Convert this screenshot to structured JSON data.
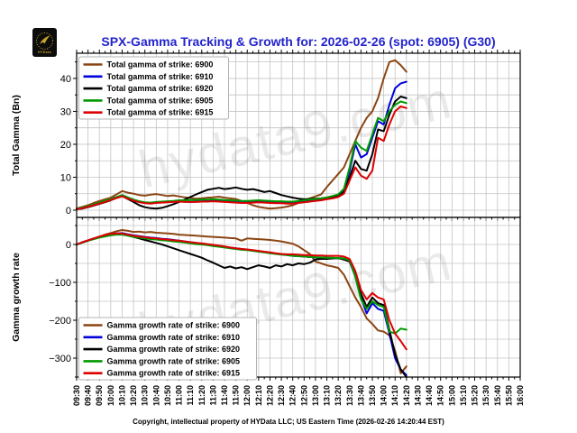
{
  "header": {
    "title": "SPX-Gamma Tracking & Growth for: 2026-02-26 (spot: 6905) (G30)",
    "logo_text": "HYData"
  },
  "footer": {
    "copyright": "Copyright, intellectual property of HYData LLC; US Eastern Time (2026-02-26 14:20:44 EST)"
  },
  "watermark": {
    "text": "hydata9.com"
  },
  "chart_data": {
    "type": "line",
    "x_start": "09:30",
    "x_end": "16:00",
    "x_tick_interval_min": 10,
    "sample_step_min": 5,
    "data_end": "14:20",
    "x_labels": [
      "09:30",
      "09:40",
      "09:50",
      "10:00",
      "10:10",
      "10:20",
      "10:30",
      "10:40",
      "10:50",
      "11:00",
      "11:10",
      "11:20",
      "11:30",
      "11:40",
      "11:50",
      "12:00",
      "12:10",
      "12:20",
      "12:30",
      "12:40",
      "12:50",
      "13:00",
      "13:10",
      "13:20",
      "13:30",
      "13:40",
      "13:50",
      "14:00",
      "14:10",
      "14:20",
      "14:30",
      "14:40",
      "14:50",
      "15:00",
      "15:10",
      "15:20",
      "15:30",
      "15:40",
      "15:50",
      "16:00"
    ],
    "grid": true,
    "legend_position": "upper-left",
    "top": {
      "ylabel": "Total Gamma (Bn)",
      "ylim": [
        -2.2,
        47.6
      ],
      "yticks": [
        0,
        10,
        20,
        30,
        40
      ],
      "grid_step": 5,
      "series": [
        {
          "label": "Total gamma of strike: 6900",
          "color": "#8B4513",
          "values": [
            0.5,
            1.0,
            1.5,
            2.2,
            2.8,
            3.3,
            3.8,
            4.8,
            5.8,
            5.3,
            5.0,
            4.6,
            4.4,
            4.7,
            4.9,
            4.6,
            4.3,
            4.5,
            4.2,
            3.9,
            3.7,
            3.5,
            3.6,
            3.8,
            3.9,
            4.1,
            3.8,
            3.6,
            3.4,
            2.8,
            2.2,
            1.5,
            1.0,
            0.7,
            0.5,
            0.6,
            0.8,
            1.1,
            1.5,
            2.2,
            3.0,
            3.6,
            4.2,
            4.8,
            7.0,
            9.0,
            11.0,
            13.0,
            17.0,
            21.0,
            25.0,
            28.0,
            30.0,
            34.0,
            40.0,
            45.0,
            45.5,
            44.0,
            42.0
          ]
        },
        {
          "label": "Total gamma of strike: 6910",
          "color": "#0000DD",
          "values": [
            0.3,
            0.6,
            1.0,
            1.5,
            2.0,
            2.6,
            3.2,
            3.9,
            4.5,
            3.8,
            3.2,
            2.6,
            2.2,
            2.1,
            2.3,
            2.4,
            2.5,
            2.6,
            2.7,
            2.6,
            2.5,
            2.6,
            2.7,
            2.8,
            2.9,
            2.8,
            2.7,
            2.6,
            2.5,
            2.4,
            2.4,
            2.5,
            2.6,
            2.5,
            2.4,
            2.3,
            2.3,
            2.2,
            2.2,
            2.4,
            2.6,
            2.8,
            3.0,
            3.2,
            3.5,
            3.8,
            4.2,
            6.0,
            12.0,
            20.0,
            16.0,
            17.0,
            22.0,
            27.0,
            26.0,
            32.0,
            37.0,
            38.5,
            39.0
          ]
        },
        {
          "label": "Total gamma of strike: 6920",
          "color": "#000000",
          "values": [
            0.3,
            0.5,
            0.9,
            1.4,
            1.9,
            2.4,
            3.0,
            3.7,
            4.3,
            3.4,
            2.5,
            1.5,
            0.9,
            0.6,
            0.5,
            0.7,
            1.2,
            1.8,
            2.5,
            3.2,
            4.0,
            4.8,
            5.5,
            6.2,
            6.5,
            6.8,
            6.4,
            6.6,
            6.9,
            6.5,
            6.2,
            6.4,
            6.0,
            5.5,
            5.8,
            5.2,
            4.6,
            4.2,
            3.8,
            3.5,
            3.3,
            3.4,
            3.5,
            3.6,
            3.8,
            4.0,
            4.3,
            5.5,
            10.0,
            15.0,
            12.5,
            12.0,
            17.0,
            24.5,
            24.0,
            29.0,
            33.0,
            34.5,
            34.0
          ]
        },
        {
          "label": "Total gamma of strike: 6905",
          "color": "#009900",
          "values": [
            0.4,
            0.8,
            1.2,
            1.8,
            2.3,
            2.9,
            3.4,
            4.0,
            4.6,
            3.9,
            3.2,
            2.7,
            2.4,
            2.3,
            2.5,
            2.6,
            2.7,
            2.8,
            3.0,
            3.0,
            3.1,
            3.1,
            3.2,
            3.2,
            3.3,
            3.2,
            3.1,
            3.0,
            2.9,
            2.8,
            2.8,
            2.9,
            3.0,
            2.9,
            2.8,
            2.7,
            2.7,
            2.6,
            2.6,
            2.8,
            3.0,
            3.2,
            3.4,
            3.6,
            3.9,
            4.3,
            4.8,
            6.5,
            13.0,
            21.0,
            19.0,
            18.0,
            23.0,
            28.0,
            27.0,
            30.0,
            32.0,
            33.0,
            32.5
          ]
        },
        {
          "label": "Total gamma of strike: 6915",
          "color": "#DD0000",
          "values": [
            0.3,
            0.6,
            1.0,
            1.5,
            2.0,
            2.5,
            3.1,
            3.7,
            4.2,
            3.5,
            2.9,
            2.4,
            2.1,
            2.0,
            2.2,
            2.3,
            2.4,
            2.5,
            2.6,
            2.5,
            2.5,
            2.5,
            2.6,
            2.6,
            2.7,
            2.6,
            2.5,
            2.4,
            2.3,
            2.2,
            2.2,
            2.3,
            2.4,
            2.3,
            2.2,
            2.1,
            2.1,
            2.0,
            2.0,
            2.2,
            2.4,
            2.6,
            2.8,
            3.0,
            3.3,
            3.6,
            4.0,
            5.0,
            9.0,
            13.0,
            10.5,
            9.5,
            12.0,
            22.0,
            21.0,
            26.0,
            30.0,
            31.5,
            31.0
          ]
        }
      ]
    },
    "bottom": {
      "ylabel": "Gamma growth rate",
      "ylim": [
        -350,
        71
      ],
      "yticks": [
        0,
        -100,
        -200,
        -300
      ],
      "grid_step": 50,
      "series": [
        {
          "label": "Gamma growth rate of strike: 6900",
          "color": "#8B4513",
          "values": [
            0,
            5,
            10,
            15,
            20,
            26,
            30,
            35,
            38,
            36,
            33,
            34,
            32,
            33,
            31,
            30,
            29,
            28,
            26,
            25,
            24,
            23,
            22,
            21,
            20,
            19,
            18,
            17,
            16,
            10,
            16,
            15,
            14,
            13,
            12,
            10,
            8,
            5,
            2,
            -5,
            -15,
            -25,
            -45,
            -50,
            -55,
            -58,
            -62,
            -80,
            -110,
            -140,
            -165,
            -195,
            -210,
            -227,
            -230,
            -240,
            -280,
            -340,
            -322
          ]
        },
        {
          "label": "Gamma growth rate of strike: 6910",
          "color": "#0000DD",
          "values": [
            0,
            6,
            11,
            16,
            20,
            24,
            27,
            29,
            30,
            27,
            24,
            22,
            20,
            18,
            17,
            15,
            14,
            12,
            10,
            8,
            6,
            4,
            2,
            0,
            -2,
            -4,
            -6,
            -8,
            -10,
            -12,
            -14,
            -16,
            -18,
            -20,
            -22,
            -24,
            -26,
            -28,
            -30,
            -31,
            -32,
            -33,
            -34,
            -35,
            -35,
            -36,
            -36,
            -37,
            -45,
            -85,
            -140,
            -182,
            -155,
            -170,
            -175,
            -235,
            -300,
            -330,
            -345
          ]
        },
        {
          "label": "Gamma growth rate of strike: 6920",
          "color": "#000000",
          "values": [
            0,
            5,
            10,
            15,
            19,
            23,
            26,
            28,
            28,
            24,
            20,
            16,
            12,
            8,
            4,
            0,
            -5,
            -10,
            -15,
            -20,
            -25,
            -30,
            -35,
            -42,
            -48,
            -55,
            -62,
            -58,
            -63,
            -60,
            -65,
            -60,
            -55,
            -58,
            -62,
            -55,
            -58,
            -52,
            -55,
            -50,
            -52,
            -48,
            -40,
            -38,
            -38,
            -37,
            -36,
            -40,
            -45,
            -80,
            -130,
            -165,
            -140,
            -155,
            -160,
            -225,
            -290,
            -330,
            -350
          ]
        },
        {
          "label": "Gamma growth rate of strike: 6905",
          "color": "#009900",
          "values": [
            0,
            5,
            10,
            14,
            18,
            21,
            24,
            26,
            26,
            23,
            20,
            18,
            16,
            14,
            13,
            11,
            10,
            8,
            7,
            5,
            3,
            1,
            0,
            -2,
            -4,
            -6,
            -8,
            -10,
            -12,
            -14,
            -15,
            -17,
            -19,
            -21,
            -23,
            -25,
            -27,
            -28,
            -30,
            -31,
            -32,
            -33,
            -34,
            -34,
            -35,
            -35,
            -36,
            -37,
            -42,
            -85,
            -145,
            -170,
            -150,
            -160,
            -165,
            -230,
            -235,
            -222,
            -225
          ]
        },
        {
          "label": "Gamma growth rate of strike: 6915",
          "color": "#DD0000",
          "values": [
            0,
            6,
            11,
            16,
            21,
            25,
            28,
            29,
            29,
            26,
            23,
            21,
            19,
            17,
            16,
            14,
            13,
            11,
            10,
            8,
            6,
            4,
            3,
            1,
            -1,
            -3,
            -5,
            -8,
            -10,
            -12,
            -13,
            -15,
            -17,
            -19,
            -21,
            -23,
            -25,
            -26,
            -26,
            -27,
            -28,
            -28,
            -29,
            -29,
            -30,
            -30,
            -30,
            -32,
            -38,
            -70,
            -120,
            -145,
            -128,
            -140,
            -145,
            -200,
            -235,
            -255,
            -277
          ]
        }
      ]
    }
  }
}
